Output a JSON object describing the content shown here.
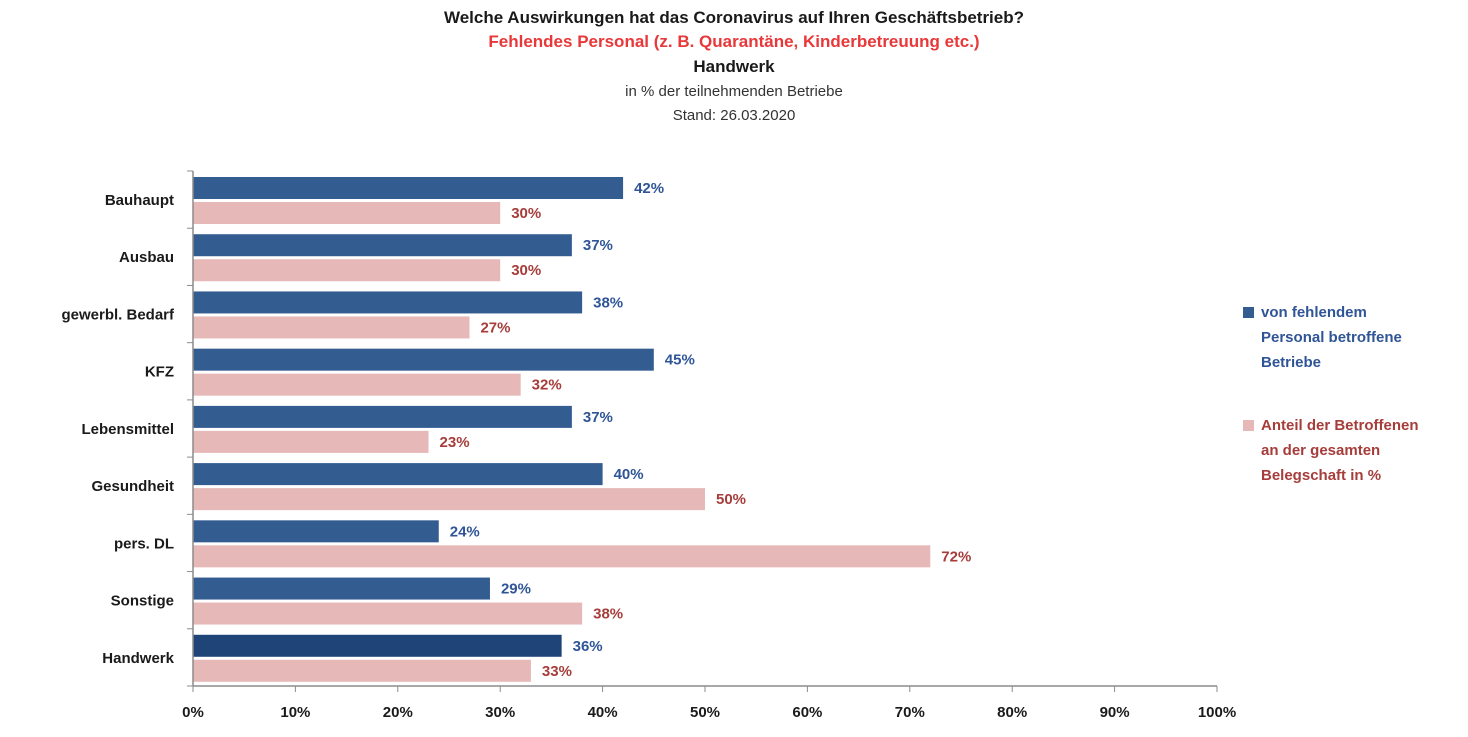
{
  "colors": {
    "series1": "#335c91",
    "series1_total": "#1f4478",
    "series2": "#e6b8b7",
    "label1": "#2f5597",
    "label2": "#a63d3a",
    "subtitle": "#e8383a"
  },
  "chart_data": {
    "type": "bar",
    "orientation": "horizontal",
    "title": "Welche Auswirkungen hat das Coronavirus auf Ihren Geschäftsbetrieb?",
    "subtitle": "Fehlendes Personal (z. B. Quarantäne, Kinderbetreuung etc.)",
    "subtitle2": "Handwerk",
    "unit_note": "in % der teilnehmenden Betriebe",
    "date_note": "Stand:  26.03.2020",
    "categories": [
      "Bauhaupt",
      "Ausbau",
      "gewerbl. Bedarf",
      "KFZ",
      "Lebensmittel",
      "Gesundheit",
      "pers. DL",
      "Sonstige",
      "Handwerk"
    ],
    "series": [
      {
        "name": "von fehlendem Personal betroffene Betriebe",
        "values": [
          42,
          37,
          38,
          45,
          37,
          40,
          24,
          29,
          36
        ]
      },
      {
        "name": "Anteil der Betroffenen an der gesamten Belegschaft in %",
        "values": [
          30,
          30,
          27,
          32,
          23,
          50,
          72,
          38,
          33
        ]
      }
    ],
    "xlim": [
      0,
      100
    ],
    "xticks": [
      "0%",
      "10%",
      "20%",
      "30%",
      "40%",
      "50%",
      "60%",
      "70%",
      "80%",
      "90%",
      "100%"
    ],
    "grid": false,
    "legend_position": "right",
    "legend": [
      {
        "lines": [
          "von fehlendem",
          "Personal betroffene",
          "Betriebe"
        ]
      },
      {
        "lines": [
          "Anteil der Betroffenen",
          "an der gesamten",
          "Belegschaft in %"
        ]
      }
    ]
  }
}
